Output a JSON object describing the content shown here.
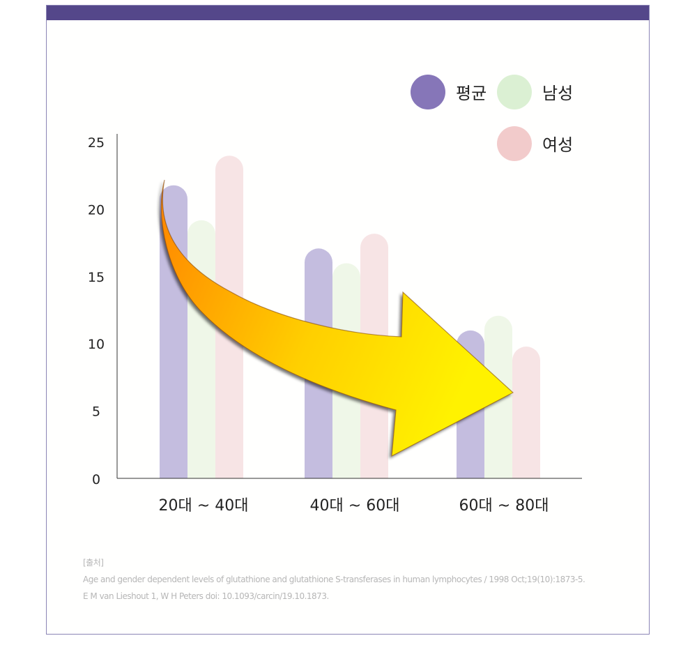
{
  "chart_data": {
    "type": "bar",
    "categories": [
      "20대 ~ 40대",
      "40대 ~ 60대",
      "60대 ~ 80대"
    ],
    "series": [
      {
        "name": "평균",
        "values": [
          21.8,
          17.1,
          11.0
        ],
        "color": "#c4bddf"
      },
      {
        "name": "남성",
        "values": [
          19.2,
          16.0,
          12.1
        ],
        "color": "#eff7e8"
      },
      {
        "name": "여성",
        "values": [
          24.0,
          18.2,
          9.8
        ],
        "color": "#f7e4e5"
      }
    ],
    "y_ticks": [
      "25",
      "20",
      "15",
      "10",
      "5",
      "0"
    ],
    "ylim": [
      0,
      25
    ],
    "legend_position": "top-right",
    "legend_colors": [
      "#8676b8",
      "#dbf0d3",
      "#f2cbcb"
    ],
    "annotation": "downward-trend-arrow",
    "arrow_colors": [
      "#ff8400",
      "#ffcf00",
      "#fff200"
    ]
  },
  "source": {
    "heading": "[출처]",
    "line1": "Age and gender dependent levels of glutathione and glutathione S-transferases in human lymphocytes / 1998 Oct;19(10):1873-5.",
    "line2": "E M van Lieshout 1, W H Peters  doi: 10.1093/carcin/19.10.1873."
  },
  "theme": {
    "header_bar": "#54478a",
    "card_border": "#8a84b5"
  }
}
